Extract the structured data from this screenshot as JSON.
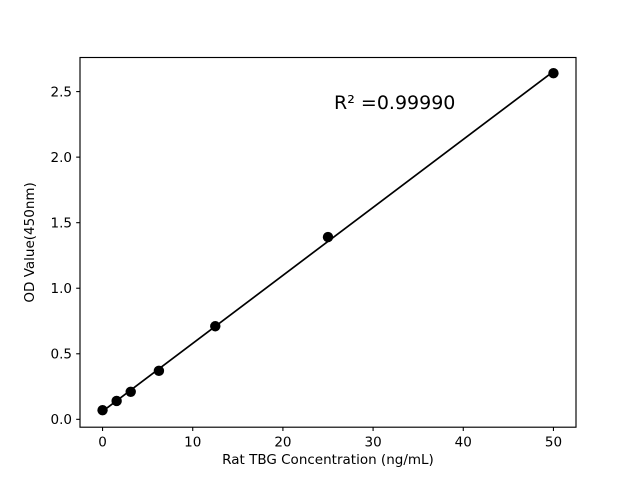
{
  "figure": {
    "background": "#ffffff",
    "foreground": "#000000"
  },
  "chart_data": {
    "type": "scatter",
    "title": "",
    "xlabel": "Rat TBG Concentration (ng/mL)",
    "ylabel": "OD Value(450nm)",
    "series": [
      {
        "name": "standard curve points",
        "marker": "filled-circle",
        "color": "#000000",
        "x": [
          0,
          1.5625,
          3.125,
          6.25,
          12.5,
          25,
          50
        ],
        "y": [
          0.07,
          0.14,
          0.21,
          0.37,
          0.71,
          1.39,
          2.64
        ]
      }
    ],
    "fit_line": {
      "name": "linear regression line",
      "color": "#000000",
      "x1": 0,
      "y1": 0.061,
      "x2": 50,
      "y2": 2.654
    },
    "annotation": {
      "text": "R² =0.99990",
      "x": 32.4,
      "y": 2.42
    },
    "xlim": [
      -2.5,
      52.5
    ],
    "ylim": [
      -0.06,
      2.76
    ],
    "x_ticks": {
      "values": [
        0,
        10,
        20,
        30,
        40,
        50
      ],
      "labels": [
        "0",
        "10",
        "20",
        "30",
        "40",
        "50"
      ]
    },
    "y_ticks": {
      "values": [
        0,
        0.5,
        1.0,
        1.5,
        2.0,
        2.5
      ],
      "labels": [
        "0.0",
        "0.5",
        "1.0",
        "1.5",
        "2.0",
        "2.5"
      ]
    },
    "grid": false,
    "legend": "none"
  }
}
